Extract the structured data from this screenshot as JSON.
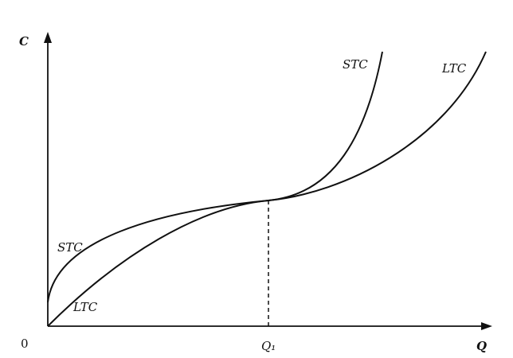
{
  "axes": {
    "y_label": "C",
    "x_label": "Q",
    "origin_label": "0",
    "x_marker_label": "Q₁"
  },
  "curves": [
    {
      "label_top": "STC",
      "label_bottom": "STC"
    },
    {
      "label_top": "LTC",
      "label_bottom": "LTC"
    }
  ]
}
